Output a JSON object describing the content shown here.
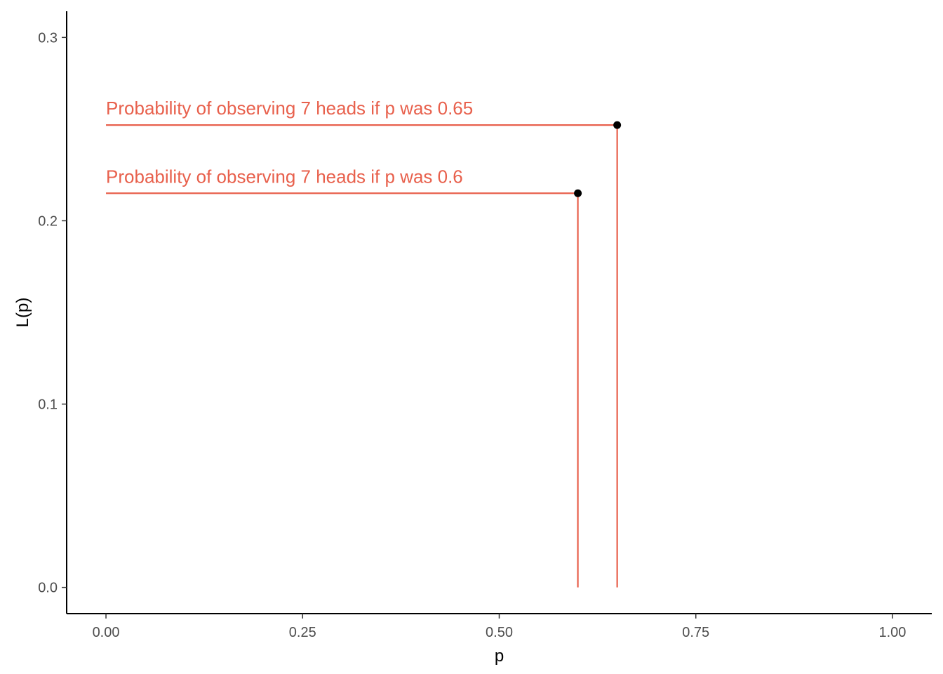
{
  "chart_data": {
    "type": "scatter",
    "title": "",
    "xlabel": "p",
    "ylabel": "L(p)",
    "xlim": [
      -0.05,
      1.05
    ],
    "ylim": [
      -0.0143,
      0.3143
    ],
    "x_ticks": [
      {
        "value": 0.0,
        "label": "0.00"
      },
      {
        "value": 0.25,
        "label": "0.25"
      },
      {
        "value": 0.5,
        "label": "0.50"
      },
      {
        "value": 0.75,
        "label": "0.75"
      },
      {
        "value": 1.0,
        "label": "1.00"
      }
    ],
    "y_ticks": [
      {
        "value": 0.0,
        "label": "0.0"
      },
      {
        "value": 0.1,
        "label": "0.1"
      },
      {
        "value": 0.2,
        "label": "0.2"
      },
      {
        "value": 0.3,
        "label": "0.3"
      }
    ],
    "grid": false,
    "accent_color": "#E8604C",
    "point_color": "#000000",
    "points": [
      {
        "x": 0.65,
        "y": 0.2522,
        "label": "Probability of observing 7 heads if p was 0.65"
      },
      {
        "x": 0.6,
        "y": 0.215,
        "label": "Probability of observing 7 heads if p was 0.6"
      }
    ]
  }
}
